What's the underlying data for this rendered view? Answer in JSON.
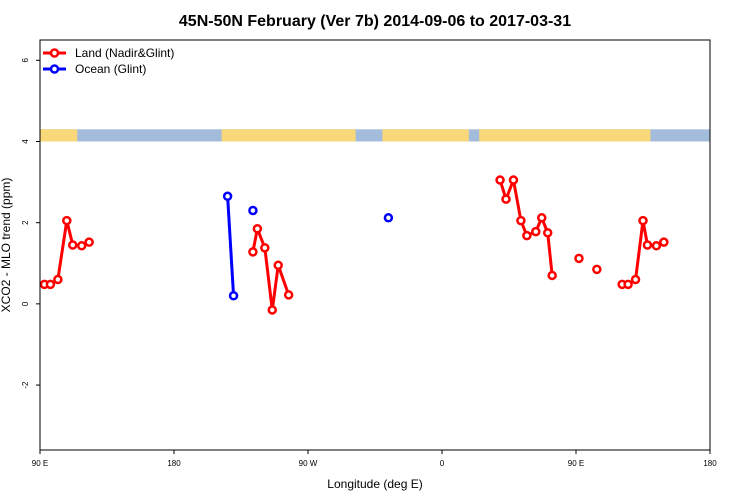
{
  "chart_data": {
    "type": "line",
    "title": "45N-50N February (Ver 7b)   2014-09-06 to 2017-03-31",
    "xlabel": "Longitude (deg E)",
    "ylabel": "XCO2 - MLO trend (ppm)",
    "x_tick_labels": [
      "90 E",
      "180",
      "90 W",
      "0",
      "90 E",
      "180"
    ],
    "y_tick_labels": [
      "-2",
      "0",
      "2",
      "4",
      "6"
    ],
    "y_ticks": [
      -2,
      0,
      2,
      4,
      6
    ],
    "xlim": [
      90,
      540
    ],
    "ylim": [
      -3.6,
      6.5
    ],
    "legend_position": "top-left",
    "land_strip": {
      "y_range": [
        4.0,
        4.3
      ],
      "land_color": "#F8D878",
      "ocean_color": "#A4BCDC"
    },
    "series": [
      {
        "name": "Land (Nadir&Glint)",
        "color": "#FF0000",
        "segments": [
          [
            [
              93,
              0.48
            ],
            [
              97,
              0.48
            ],
            [
              102,
              0.6
            ],
            [
              108,
              2.05
            ],
            [
              112,
              1.45
            ],
            [
              118,
              1.43
            ],
            [
              123,
              1.52
            ]
          ],
          [
            [
              233,
              1.28
            ],
            [
              236,
              1.85
            ],
            [
              241,
              1.38
            ],
            [
              246,
              -0.15
            ],
            [
              250,
              0.95
            ],
            [
              257,
              0.22
            ]
          ],
          [
            [
              399,
              3.05
            ],
            [
              403,
              2.58
            ],
            [
              408,
              3.05
            ],
            [
              413,
              2.05
            ],
            [
              417,
              1.68
            ],
            [
              423,
              1.78
            ],
            [
              427,
              2.12
            ],
            [
              431,
              1.75
            ],
            [
              434,
              0.7
            ]
          ],
          [
            [
              452,
              1.12
            ]
          ],
          [
            [
              464,
              0.85
            ]
          ],
          [
            [
              481,
              0.48
            ],
            [
              485,
              0.48
            ],
            [
              490,
              0.6
            ],
            [
              495,
              2.05
            ],
            [
              498,
              1.45
            ],
            [
              504,
              1.43
            ],
            [
              509,
              1.52
            ]
          ]
        ]
      },
      {
        "name": "Ocean (Glint)",
        "color": "#0000FF",
        "segments": [
          [
            [
              216,
              2.65
            ],
            [
              220,
              0.2
            ]
          ],
          [
            [
              233,
              2.3
            ]
          ],
          [
            [
              324,
              2.12
            ]
          ]
        ]
      }
    ]
  }
}
